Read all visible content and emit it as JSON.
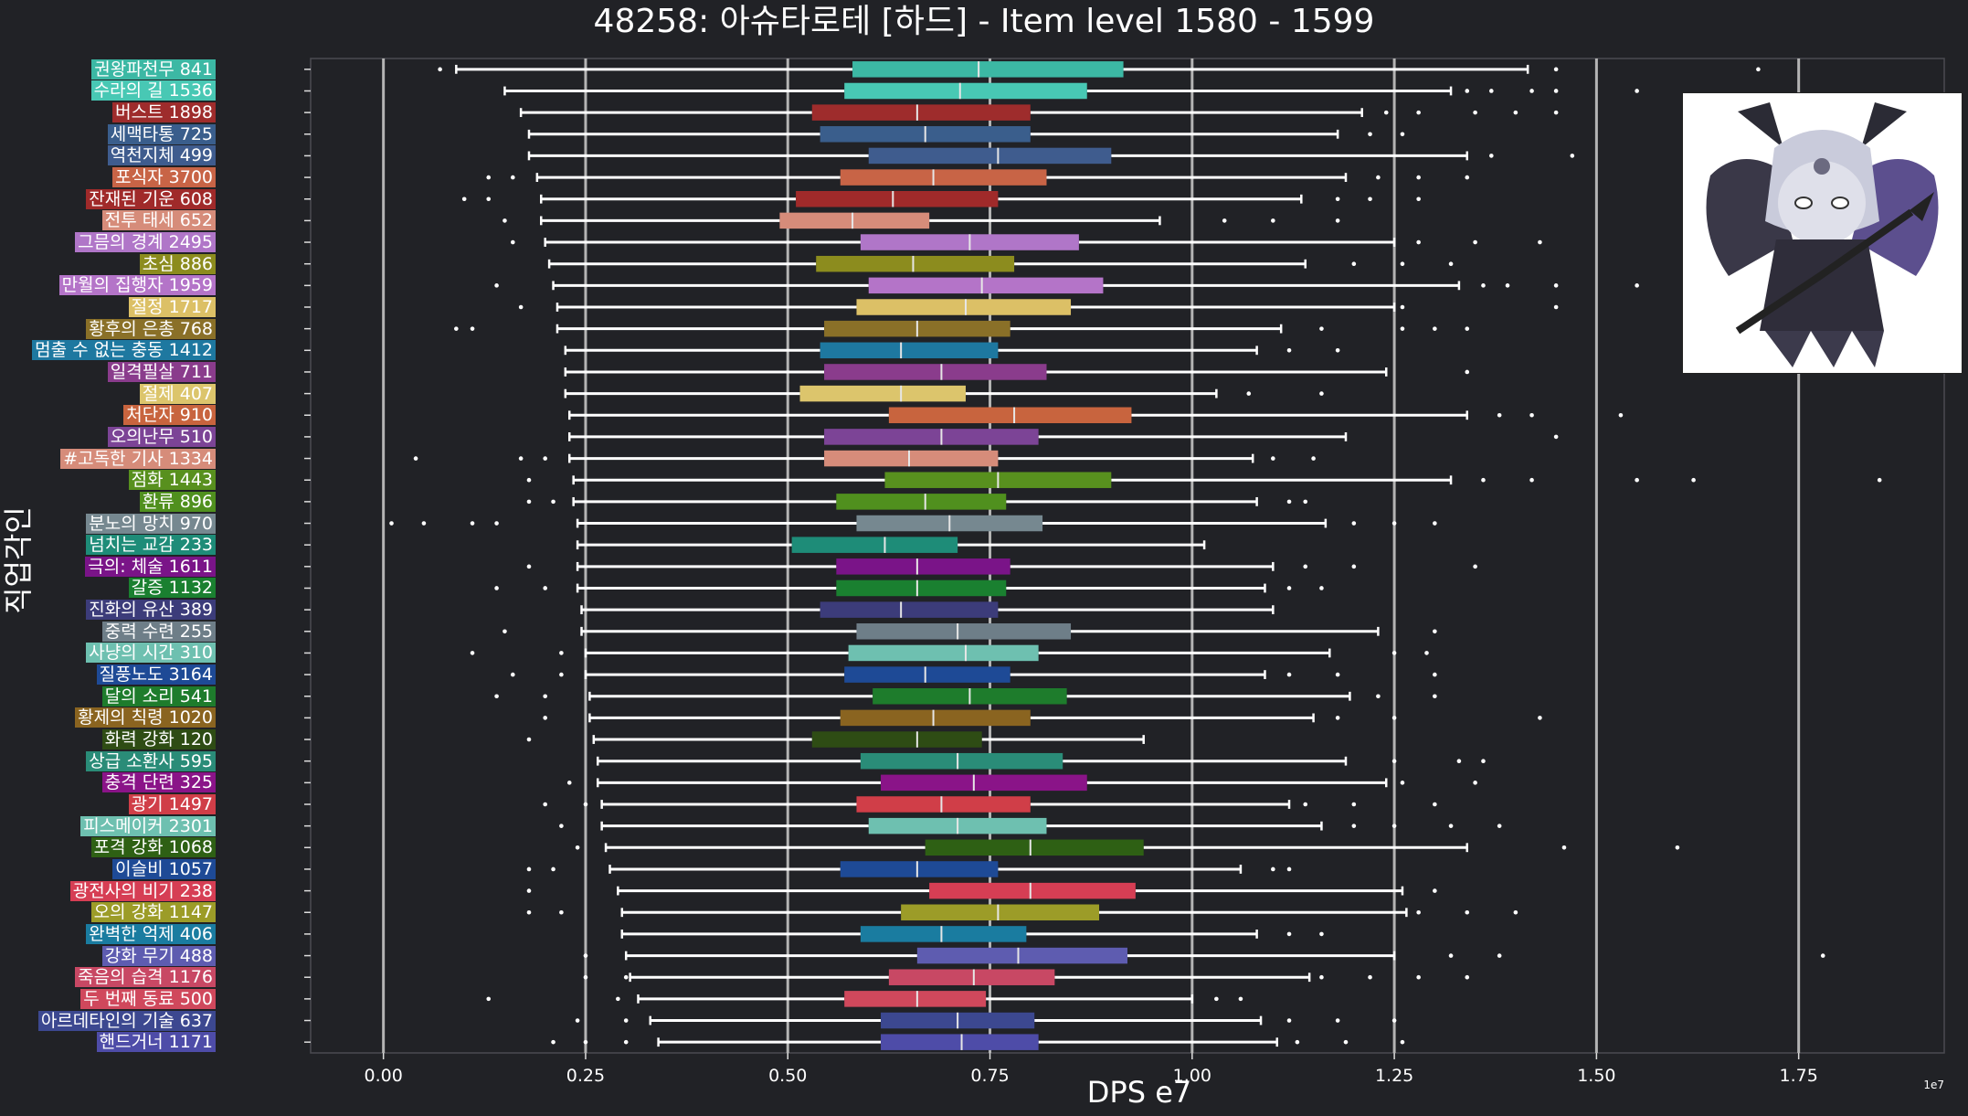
{
  "title": "48258: 아슈타로테 [하드] - Item level 1580 - 1599",
  "ylabel": "직업각인",
  "chart_data": {
    "type": "boxplot",
    "title": "48258: 아슈타로테 [하드] - Item level 1580 - 1599",
    "xlabel": "DPS e7",
    "ylabel": "직업각인",
    "x_offset_label": "1e7",
    "xlim": [
      -0.09,
      1.93
    ],
    "xticks": [
      0.0,
      0.25,
      0.5,
      0.75,
      1.0,
      1.25,
      1.5,
      1.75
    ],
    "xtick_labels": [
      "0.00",
      "0.25",
      "0.50",
      "0.75",
      "1.00",
      "1.25",
      "1.50",
      "1.75"
    ],
    "grid": "vertical",
    "series": [
      {
        "label": "권왕파천무 841",
        "color": "#3cb8a4",
        "min": 0.09,
        "q1": 0.58,
        "median": 0.736,
        "q3": 0.915,
        "max": 1.415,
        "outliers": [
          0.07,
          1.45,
          1.7
        ]
      },
      {
        "label": "수라의 길 1536",
        "color": "#48c8b4",
        "min": 0.15,
        "q1": 0.57,
        "median": 0.713,
        "q3": 0.87,
        "max": 1.32,
        "outliers": [
          1.34,
          1.37,
          1.42,
          1.45,
          1.55
        ]
      },
      {
        "label": "버스트 1898",
        "color": "#9e2c2c",
        "min": 0.17,
        "q1": 0.53,
        "median": 0.66,
        "q3": 0.8,
        "max": 1.21,
        "outliers": [
          1.24,
          1.28,
          1.35,
          1.4,
          1.45
        ]
      },
      {
        "label": "세맥타통 725",
        "color": "#3a5e8c",
        "min": 0.18,
        "q1": 0.54,
        "median": 0.67,
        "q3": 0.8,
        "max": 1.18,
        "outliers": [
          1.22,
          1.26
        ]
      },
      {
        "label": "역천지체 499",
        "color": "#3f5c8e",
        "min": 0.18,
        "q1": 0.6,
        "median": 0.76,
        "q3": 0.9,
        "max": 1.34,
        "outliers": [
          1.37,
          1.47
        ]
      },
      {
        "label": "포식자 3700",
        "color": "#c86446",
        "min": 0.19,
        "q1": 0.565,
        "median": 0.68,
        "q3": 0.82,
        "max": 1.19,
        "outliers": [
          0.13,
          0.16,
          1.23,
          1.28,
          1.34
        ]
      },
      {
        "label": "잔재된 기운 608",
        "color": "#a02a2a",
        "min": 0.195,
        "q1": 0.51,
        "median": 0.63,
        "q3": 0.76,
        "max": 1.135,
        "outliers": [
          0.1,
          0.13,
          1.18,
          1.22,
          1.28
        ]
      },
      {
        "label": "전투 태세 652",
        "color": "#d68c7a",
        "min": 0.195,
        "q1": 0.49,
        "median": 0.58,
        "q3": 0.675,
        "max": 0.96,
        "outliers": [
          0.15,
          1.04,
          1.1,
          1.18
        ]
      },
      {
        "label": "그믐의 경계 2495",
        "color": "#b076c8",
        "min": 0.2,
        "q1": 0.59,
        "median": 0.725,
        "q3": 0.86,
        "max": 1.25,
        "outliers": [
          0.16,
          1.28,
          1.35,
          1.43
        ]
      },
      {
        "label": "초심 886",
        "color": "#8c8c1e",
        "min": 0.205,
        "q1": 0.535,
        "median": 0.655,
        "q3": 0.78,
        "max": 1.14,
        "outliers": [
          1.2,
          1.26,
          1.32
        ]
      },
      {
        "label": "만월의 집행자 1959",
        "color": "#b474c8",
        "min": 0.21,
        "q1": 0.6,
        "median": 0.74,
        "q3": 0.89,
        "max": 1.33,
        "outliers": [
          0.14,
          1.36,
          1.39,
          1.45,
          1.55
        ]
      },
      {
        "label": "절정 1717",
        "color": "#dcc066",
        "min": 0.215,
        "q1": 0.585,
        "median": 0.72,
        "q3": 0.85,
        "max": 1.25,
        "outliers": [
          0.17,
          1.26,
          1.45
        ]
      },
      {
        "label": "황후의 은총 768",
        "color": "#8a7028",
        "min": 0.215,
        "q1": 0.545,
        "median": 0.66,
        "q3": 0.775,
        "max": 1.11,
        "outliers": [
          0.09,
          0.11,
          1.16,
          1.26,
          1.3,
          1.34
        ]
      },
      {
        "label": "멈출 수 없는 충동 1412",
        "color": "#1e78a0",
        "min": 0.225,
        "q1": 0.54,
        "median": 0.64,
        "q3": 0.76,
        "max": 1.08,
        "outliers": [
          1.12,
          1.18
        ]
      },
      {
        "label": "일격필살 711",
        "color": "#8a3c8c",
        "min": 0.225,
        "q1": 0.545,
        "median": 0.69,
        "q3": 0.82,
        "max": 1.24,
        "outliers": [
          1.34
        ]
      },
      {
        "label": "절제 407",
        "color": "#dcc56c",
        "min": 0.225,
        "q1": 0.515,
        "median": 0.64,
        "q3": 0.72,
        "max": 1.03,
        "outliers": [
          1.07,
          1.16
        ]
      },
      {
        "label": "처단자 910",
        "color": "#c8643e",
        "min": 0.23,
        "q1": 0.625,
        "median": 0.78,
        "q3": 0.925,
        "max": 1.34,
        "outliers": [
          1.38,
          1.42,
          1.53
        ]
      },
      {
        "label": "오의난무 510",
        "color": "#7c4496",
        "min": 0.23,
        "q1": 0.545,
        "median": 0.69,
        "q3": 0.81,
        "max": 1.19,
        "outliers": [
          1.45
        ]
      },
      {
        "label": "#고독한 기사 1334",
        "color": "#d68c7a",
        "min": 0.23,
        "q1": 0.545,
        "median": 0.65,
        "q3": 0.76,
        "max": 1.075,
        "outliers": [
          0.04,
          0.17,
          0.2,
          1.1,
          1.15
        ]
      },
      {
        "label": "점화 1443",
        "color": "#58901e",
        "min": 0.235,
        "q1": 0.62,
        "median": 0.76,
        "q3": 0.9,
        "max": 1.32,
        "outliers": [
          0.18,
          1.36,
          1.42,
          1.55,
          1.62,
          1.85
        ]
      },
      {
        "label": "환류 896",
        "color": "#50901e",
        "min": 0.235,
        "q1": 0.56,
        "median": 0.67,
        "q3": 0.77,
        "max": 1.08,
        "outliers": [
          0.18,
          0.21,
          1.12,
          1.14
        ]
      },
      {
        "label": "분노의 망치 970",
        "color": "#768890",
        "min": 0.24,
        "q1": 0.585,
        "median": 0.7,
        "q3": 0.815,
        "max": 1.165,
        "outliers": [
          0.01,
          0.05,
          0.11,
          0.14,
          1.2,
          1.25,
          1.3
        ]
      },
      {
        "label": "넘치는 교감 233",
        "color": "#1e8c78",
        "min": 0.24,
        "q1": 0.505,
        "median": 0.62,
        "q3": 0.71,
        "max": 1.015,
        "outliers": []
      },
      {
        "label": "극의: 체술 1611",
        "color": "#7a1488",
        "min": 0.24,
        "q1": 0.56,
        "median": 0.66,
        "q3": 0.775,
        "max": 1.1,
        "outliers": [
          0.18,
          1.14,
          1.2,
          1.35
        ]
      },
      {
        "label": "갈증 1132",
        "color": "#1a8030",
        "min": 0.24,
        "q1": 0.56,
        "median": 0.66,
        "q3": 0.77,
        "max": 1.09,
        "outliers": [
          0.14,
          0.2,
          1.12,
          1.16
        ]
      },
      {
        "label": "진화의 유산 389",
        "color": "#3c3c7a",
        "min": 0.245,
        "q1": 0.54,
        "median": 0.64,
        "q3": 0.76,
        "max": 1.1,
        "outliers": []
      },
      {
        "label": "중력 수련 255",
        "color": "#6e7e88",
        "min": 0.245,
        "q1": 0.585,
        "median": 0.71,
        "q3": 0.85,
        "max": 1.23,
        "outliers": [
          0.15,
          1.3
        ]
      },
      {
        "label": "사냥의 시간 310",
        "color": "#6ec0b0",
        "min": 0.25,
        "q1": 0.575,
        "median": 0.72,
        "q3": 0.81,
        "max": 1.17,
        "outliers": [
          0.11,
          0.22,
          1.25,
          1.29
        ]
      },
      {
        "label": "질풍노도 3164",
        "color": "#1e4a96",
        "min": 0.25,
        "q1": 0.57,
        "median": 0.67,
        "q3": 0.775,
        "max": 1.09,
        "outliers": [
          0.16,
          0.22,
          1.12,
          1.18,
          1.3
        ]
      },
      {
        "label": "달의 소리 541",
        "color": "#1e7c2c",
        "min": 0.255,
        "q1": 0.605,
        "median": 0.725,
        "q3": 0.845,
        "max": 1.195,
        "outliers": [
          0.14,
          0.2,
          1.23,
          1.3
        ]
      },
      {
        "label": "황제의 칙령 1020",
        "color": "#8a6420",
        "min": 0.255,
        "q1": 0.565,
        "median": 0.68,
        "q3": 0.8,
        "max": 1.15,
        "outliers": [
          0.2,
          1.18,
          1.25,
          1.43
        ]
      },
      {
        "label": "화력 강화 120",
        "color": "#2e4c14",
        "min": 0.26,
        "q1": 0.53,
        "median": 0.66,
        "q3": 0.74,
        "max": 0.94,
        "outliers": [
          0.18
        ]
      },
      {
        "label": "상급 소환사 595",
        "color": "#2a8c78",
        "min": 0.265,
        "q1": 0.59,
        "median": 0.71,
        "q3": 0.84,
        "max": 1.19,
        "outliers": [
          1.25,
          1.33,
          1.36
        ]
      },
      {
        "label": "충격 단련 325",
        "color": "#8a1488",
        "min": 0.265,
        "q1": 0.615,
        "median": 0.73,
        "q3": 0.87,
        "max": 1.24,
        "outliers": [
          0.23,
          1.26,
          1.35
        ]
      },
      {
        "label": "광기 1497",
        "color": "#d03e48",
        "min": 0.27,
        "q1": 0.585,
        "median": 0.69,
        "q3": 0.8,
        "max": 1.12,
        "outliers": [
          0.2,
          0.25,
          1.14,
          1.2,
          1.3
        ]
      },
      {
        "label": "피스메이커 2301",
        "color": "#6ec0b0",
        "min": 0.27,
        "q1": 0.6,
        "median": 0.71,
        "q3": 0.82,
        "max": 1.16,
        "outliers": [
          0.22,
          1.2,
          1.25,
          1.32,
          1.38
        ]
      },
      {
        "label": "포격 강화 1068",
        "color": "#2e6014",
        "min": 0.275,
        "q1": 0.67,
        "median": 0.8,
        "q3": 0.94,
        "max": 1.34,
        "outliers": [
          0.24,
          1.46,
          1.6
        ]
      },
      {
        "label": "이슬비 1057",
        "color": "#1e4a96",
        "min": 0.28,
        "q1": 0.565,
        "median": 0.66,
        "q3": 0.76,
        "max": 1.06,
        "outliers": [
          0.18,
          0.21,
          1.1,
          1.12
        ]
      },
      {
        "label": "광전사의 비기 238",
        "color": "#d63e54",
        "min": 0.29,
        "q1": 0.675,
        "median": 0.8,
        "q3": 0.93,
        "max": 1.26,
        "outliers": [
          0.18,
          1.3
        ]
      },
      {
        "label": "오의 강화 1147",
        "color": "#9c9c28",
        "min": 0.295,
        "q1": 0.64,
        "median": 0.76,
        "q3": 0.885,
        "max": 1.265,
        "outliers": [
          0.18,
          0.22,
          1.28,
          1.34,
          1.4
        ]
      },
      {
        "label": "완벽한 억제 406",
        "color": "#1a7ca0",
        "min": 0.295,
        "q1": 0.59,
        "median": 0.69,
        "q3": 0.795,
        "max": 1.08,
        "outliers": [
          1.12,
          1.16
        ]
      },
      {
        "label": "강화 무기 488",
        "color": "#5e5cb0",
        "min": 0.3,
        "q1": 0.66,
        "median": 0.785,
        "q3": 0.92,
        "max": 1.25,
        "outliers": [
          0.25,
          1.32,
          1.38,
          1.78
        ]
      },
      {
        "label": "죽음의 습격 1176",
        "color": "#c84864",
        "min": 0.305,
        "q1": 0.625,
        "median": 0.73,
        "q3": 0.83,
        "max": 1.145,
        "outliers": [
          0.25,
          0.3,
          1.16,
          1.22,
          1.28,
          1.34
        ]
      },
      {
        "label": "두 번째 동료 500",
        "color": "#d0485c",
        "min": 0.315,
        "q1": 0.57,
        "median": 0.66,
        "q3": 0.745,
        "max": 1.0,
        "outliers": [
          0.13,
          0.29,
          1.03,
          1.06
        ]
      },
      {
        "label": "아르데타인의 기술 637",
        "color": "#3c4890",
        "min": 0.33,
        "q1": 0.615,
        "median": 0.71,
        "q3": 0.805,
        "max": 1.085,
        "outliers": [
          0.24,
          0.3,
          1.12,
          1.18,
          1.25
        ]
      },
      {
        "label": "핸드거너 1171",
        "color": "#4e4ca8",
        "min": 0.34,
        "q1": 0.615,
        "median": 0.715,
        "q3": 0.81,
        "max": 1.105,
        "outliers": [
          0.21,
          0.25,
          0.3,
          1.13,
          1.19,
          1.26
        ]
      }
    ]
  }
}
